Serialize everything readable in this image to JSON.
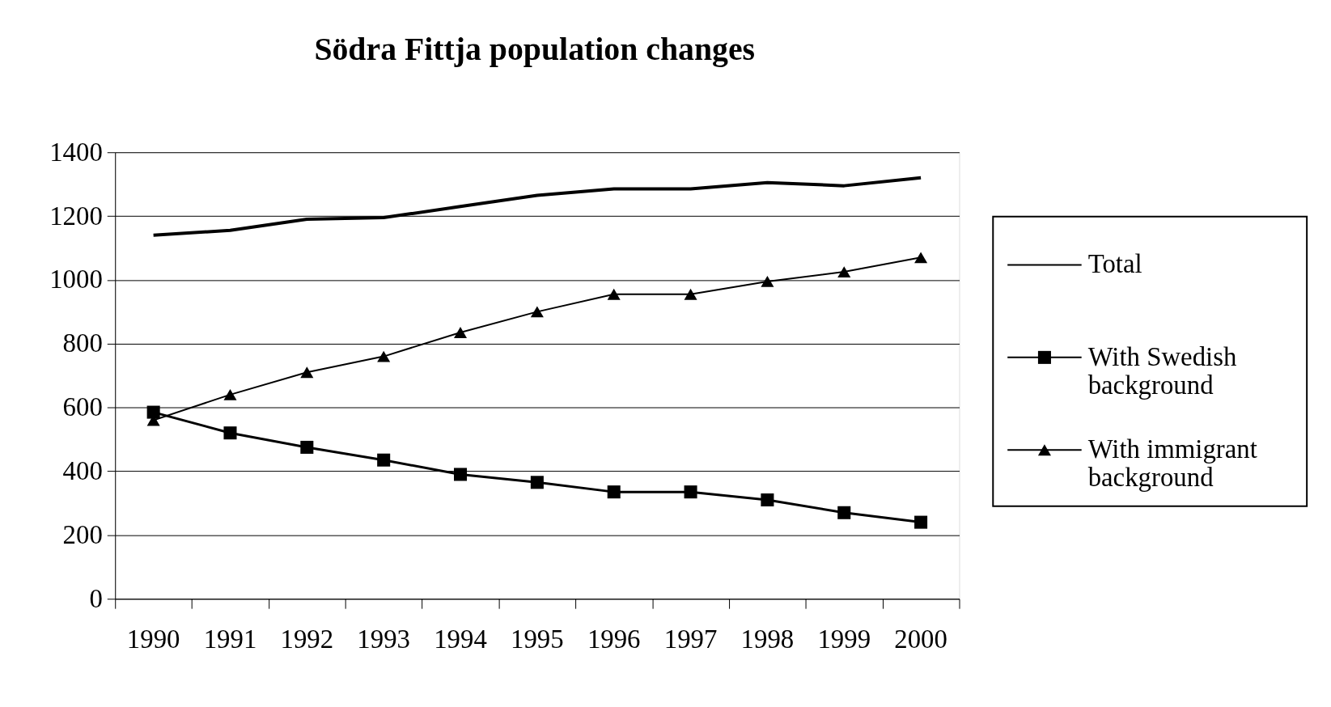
{
  "chart_data": {
    "type": "line",
    "title": "Södra Fittja population changes",
    "categories": [
      "1990",
      "1991",
      "1992",
      "1993",
      "1994",
      "1995",
      "1996",
      "1997",
      "1998",
      "1999",
      "2000"
    ],
    "series": [
      {
        "name": "Total",
        "color": "#000000",
        "marker": "none",
        "values": [
          1140,
          1155,
          1190,
          1195,
          1230,
          1265,
          1285,
          1285,
          1305,
          1295,
          1320
        ]
      },
      {
        "name": "With Swedish background",
        "color": "#000000",
        "marker": "square",
        "values": [
          585,
          520,
          475,
          435,
          390,
          365,
          335,
          335,
          310,
          270,
          240
        ]
      },
      {
        "name": "With immigrant background",
        "color": "#000000",
        "marker": "triangle",
        "values": [
          560,
          640,
          710,
          760,
          835,
          900,
          955,
          955,
          995,
          1025,
          1070
        ]
      }
    ],
    "ylim": [
      0,
      1400
    ],
    "yticks": [
      0,
      200,
      400,
      600,
      800,
      1000,
      1200,
      1400
    ],
    "grid": "y",
    "legend": "right"
  }
}
